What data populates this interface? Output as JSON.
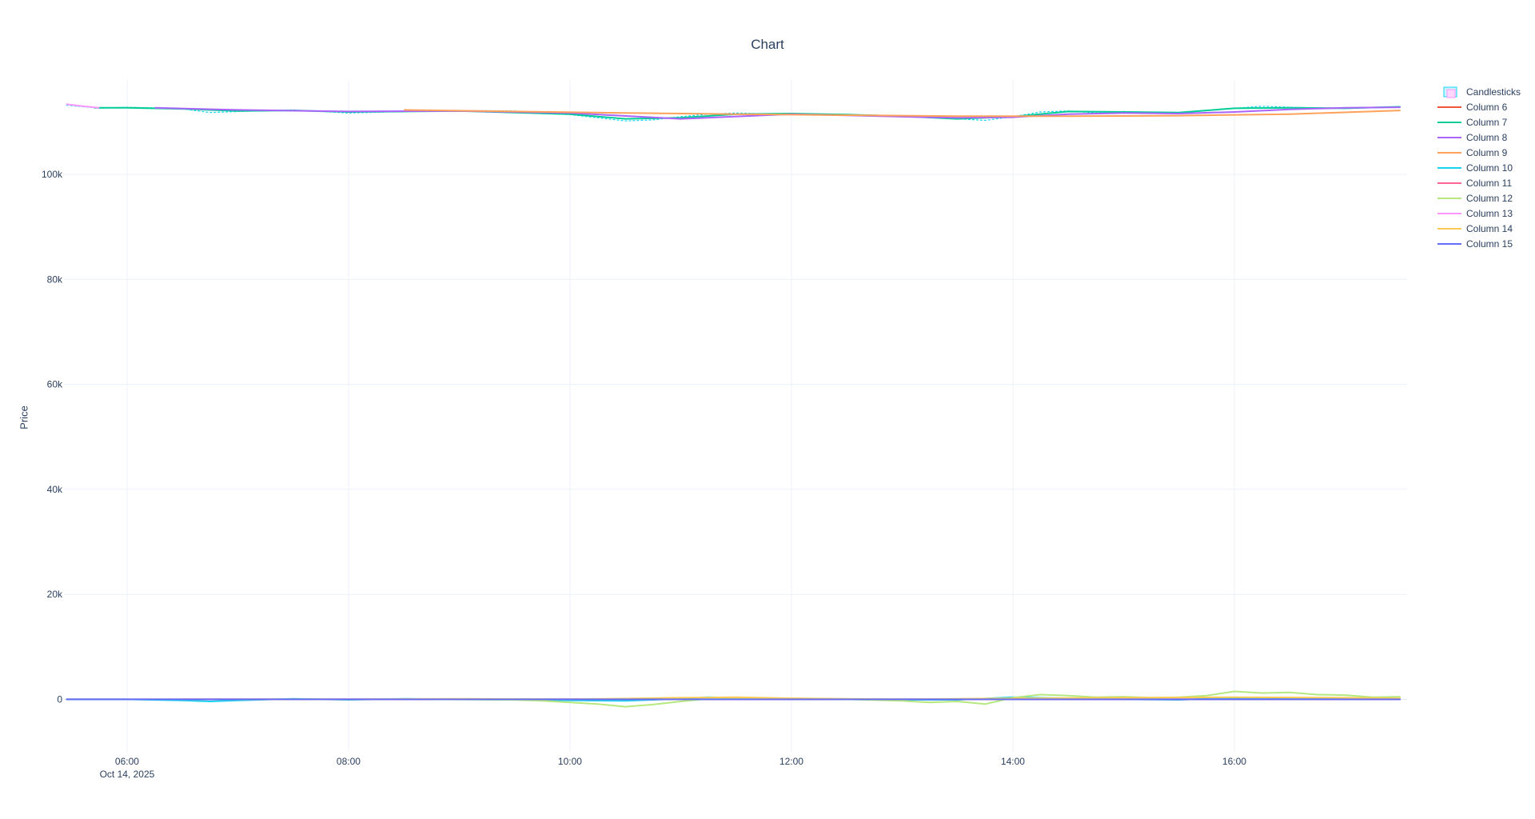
{
  "chart_data": {
    "type": "line",
    "title": "Chart",
    "xlabel": "",
    "ylabel": "Price",
    "ylim": [
      -10000,
      118000
    ],
    "x_tick_labels": [
      "06:00",
      "08:00",
      "10:00",
      "12:00",
      "14:00",
      "16:00"
    ],
    "x_date_label": "Oct 14, 2025",
    "y_tick_labels": [
      "0",
      "20k",
      "40k",
      "60k",
      "80k",
      "100k"
    ],
    "y_ticks": [
      0,
      20000,
      40000,
      60000,
      80000,
      100000
    ],
    "x_time_ticks": [
      6,
      8,
      10,
      12,
      14,
      16
    ],
    "x_time_range": [
      5.43,
      17.56
    ],
    "grid": true,
    "legend_placement": "top-right",
    "series": [
      {
        "name": "Candlesticks",
        "color": "#19d3f3",
        "x": [
          5.45,
          5.75,
          6.0,
          6.25,
          6.5,
          6.75,
          7.0,
          7.5,
          8.0,
          8.5,
          9.0,
          9.5,
          9.75,
          10.0,
          10.25,
          10.5,
          10.75,
          11.0,
          11.25,
          11.5,
          12.0,
          12.5,
          13.0,
          13.25,
          13.5,
          13.75,
          14.0,
          14.25,
          14.5,
          14.75,
          15.0,
          15.5,
          16.0,
          16.25,
          16.5,
          17.0,
          17.5
        ],
        "y": [
          113200,
          112600,
          112800,
          112700,
          112500,
          111800,
          112000,
          112300,
          111700,
          112000,
          112200,
          112100,
          111600,
          111400,
          110800,
          110200,
          110400,
          111000,
          111500,
          111700,
          111400,
          111300,
          111200,
          110800,
          110600,
          110300,
          111000,
          111900,
          112100,
          111700,
          112000,
          111700,
          112600,
          113000,
          112800,
          112600,
          112800
        ]
      },
      {
        "name": "Column 6",
        "color": "#ef553b",
        "x": [
          5.45,
          6.0,
          6.5,
          7.0,
          8.0,
          9.0,
          10.0,
          11.0,
          12.0,
          13.0,
          14.0,
          15.0,
          16.0,
          16.5,
          17.0,
          17.5
        ],
        "y": [
          0,
          0,
          0,
          0,
          0,
          0,
          0,
          0,
          0,
          0,
          0,
          0,
          0,
          0,
          0,
          0
        ]
      },
      {
        "name": "Column 7",
        "color": "#00cc96",
        "x": [
          5.7,
          6.0,
          6.5,
          7.0,
          7.5,
          8.0,
          9.0,
          10.0,
          10.5,
          11.0,
          11.5,
          12.0,
          12.5,
          13.0,
          13.5,
          14.0,
          14.5,
          15.0,
          15.5,
          16.0,
          16.5,
          17.0,
          17.5
        ],
        "y": [
          112700,
          112700,
          112500,
          112100,
          112200,
          111900,
          112100,
          111500,
          110600,
          110800,
          111500,
          111600,
          111400,
          111100,
          110600,
          111000,
          112000,
          111900,
          111800,
          112600,
          112700,
          112600,
          112900
        ]
      },
      {
        "name": "Column 8",
        "color": "#ab63fa",
        "x": [
          6.25,
          7.0,
          8.0,
          9.0,
          10.0,
          11.0,
          12.0,
          13.0,
          13.5,
          14.0,
          14.5,
          15.0,
          15.5,
          16.0,
          16.5,
          17.0,
          17.5
        ],
        "y": [
          112700,
          112300,
          112000,
          112100,
          111700,
          110600,
          111500,
          111000,
          110800,
          110900,
          111500,
          111700,
          111600,
          111900,
          112400,
          112700,
          112800
        ]
      },
      {
        "name": "Column 9",
        "color": "#ffa15a",
        "x": [
          8.5,
          9.5,
          10.5,
          11.5,
          12.5,
          13.5,
          14.5,
          15.5,
          16.5,
          17.5
        ],
        "y": [
          112300,
          112000,
          111700,
          111500,
          111300,
          111100,
          111100,
          111200,
          111500,
          112200
        ]
      },
      {
        "name": "Column 10",
        "color": "#19d3f3",
        "x": [
          5.45,
          6.0,
          6.5,
          6.75,
          7.0,
          7.5,
          8.0,
          8.5,
          9.0,
          9.5,
          10.0,
          10.5,
          11.0,
          11.25,
          11.5,
          12.0,
          12.5,
          13.0,
          13.5,
          14.0,
          14.5,
          15.0,
          15.5,
          16.0,
          16.5,
          17.0,
          17.5
        ],
        "y": [
          0,
          0,
          -200,
          -400,
          -200,
          100,
          -100,
          100,
          0,
          -100,
          -200,
          -300,
          100,
          400,
          300,
          100,
          0,
          -100,
          -100,
          400,
          200,
          0,
          -100,
          300,
          200,
          0,
          100
        ]
      },
      {
        "name": "Column 11",
        "color": "#ff6692",
        "x": [
          6.5,
          7.5,
          8.5,
          9.5,
          10.5,
          11.5,
          12.5,
          13.5,
          14.5,
          15.5,
          16.5,
          17.5
        ],
        "y": [
          0,
          0,
          0,
          0,
          0,
          0,
          0,
          0,
          0,
          0,
          0,
          0
        ]
      },
      {
        "name": "Column 12",
        "color": "#b6e880",
        "x": [
          8.75,
          9.5,
          9.75,
          10.0,
          10.25,
          10.5,
          10.75,
          11.0,
          11.25,
          12.0,
          12.5,
          13.0,
          13.25,
          13.5,
          13.75,
          14.0,
          14.25,
          14.5,
          14.75,
          15.0,
          15.25,
          15.5,
          15.75,
          16.0,
          16.25,
          16.5,
          16.75,
          17.0,
          17.25,
          17.5
        ],
        "y": [
          0,
          -100,
          -300,
          -600,
          -900,
          -1400,
          -1000,
          -400,
          100,
          200,
          0,
          -300,
          -600,
          -400,
          -900,
          300,
          900,
          700,
          400,
          500,
          300,
          400,
          700,
          1500,
          1200,
          1300,
          900,
          800,
          400,
          500
        ]
      },
      {
        "name": "Column 13",
        "color": "#ff97ff",
        "x": [
          5.45,
          5.6,
          5.75
        ],
        "y": [
          113400,
          113000,
          112700
        ]
      },
      {
        "name": "Column 14",
        "color": "#fecb52",
        "x": [
          7.0,
          8.0,
          9.0,
          10.0,
          11.0,
          11.5,
          12.0,
          13.0,
          14.0,
          15.0,
          16.0,
          17.0,
          17.5
        ],
        "y": [
          0,
          0,
          100,
          0,
          300,
          400,
          200,
          0,
          200,
          300,
          400,
          300,
          200
        ]
      },
      {
        "name": "Column 15",
        "color": "#636efa",
        "x": [
          5.45,
          6.0,
          7.0,
          8.0,
          9.0,
          10.0,
          11.0,
          12.0,
          13.0,
          14.0,
          15.0,
          16.0,
          17.0,
          17.5
        ],
        "y": [
          0,
          0,
          0,
          0,
          0,
          0,
          0,
          0,
          0,
          0,
          0,
          0,
          0,
          0
        ]
      }
    ]
  }
}
